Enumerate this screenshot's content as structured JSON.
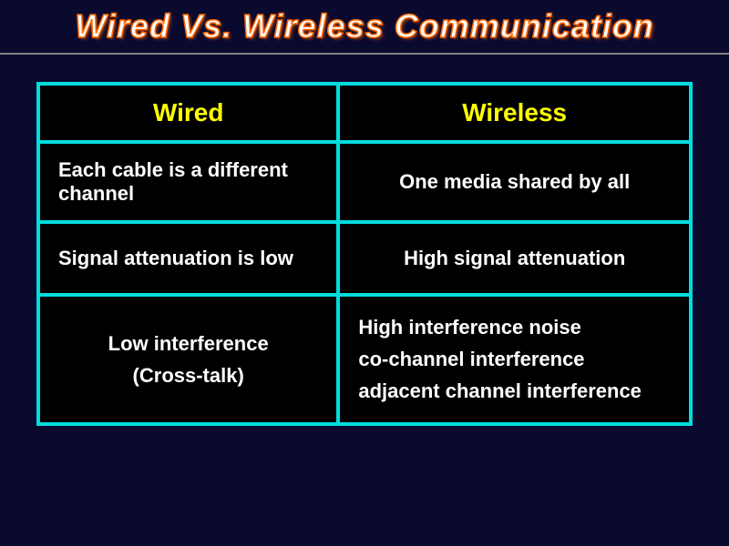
{
  "title": "Wired  Vs. Wireless Communication",
  "table": {
    "columns": [
      "Wired",
      "Wireless"
    ],
    "rows": [
      {
        "wired": "Each cable is a different channel",
        "wireless": "One media shared by all"
      },
      {
        "wired": "Signal attenuation is low",
        "wireless": "High signal attenuation"
      },
      {
        "wired": "Low interference\n(Cross-talk)",
        "wireless": "High interference noise\nco-channel interference\nadjacent channel interference"
      }
    ],
    "style": {
      "border_color": "#00dddd",
      "header_text_color": "#ffff00",
      "cell_text_color": "#ffffff",
      "cell_background": "#000000",
      "header_fontsize": 28,
      "cell_fontsize": 22,
      "border_width": 4
    }
  },
  "colors": {
    "page_background": "#0a0a2e",
    "title_fill": "#ffffff",
    "title_stroke": "#ff6600",
    "divider": "#808080"
  },
  "typography": {
    "title_fontsize": 36,
    "title_style": "bold italic"
  }
}
